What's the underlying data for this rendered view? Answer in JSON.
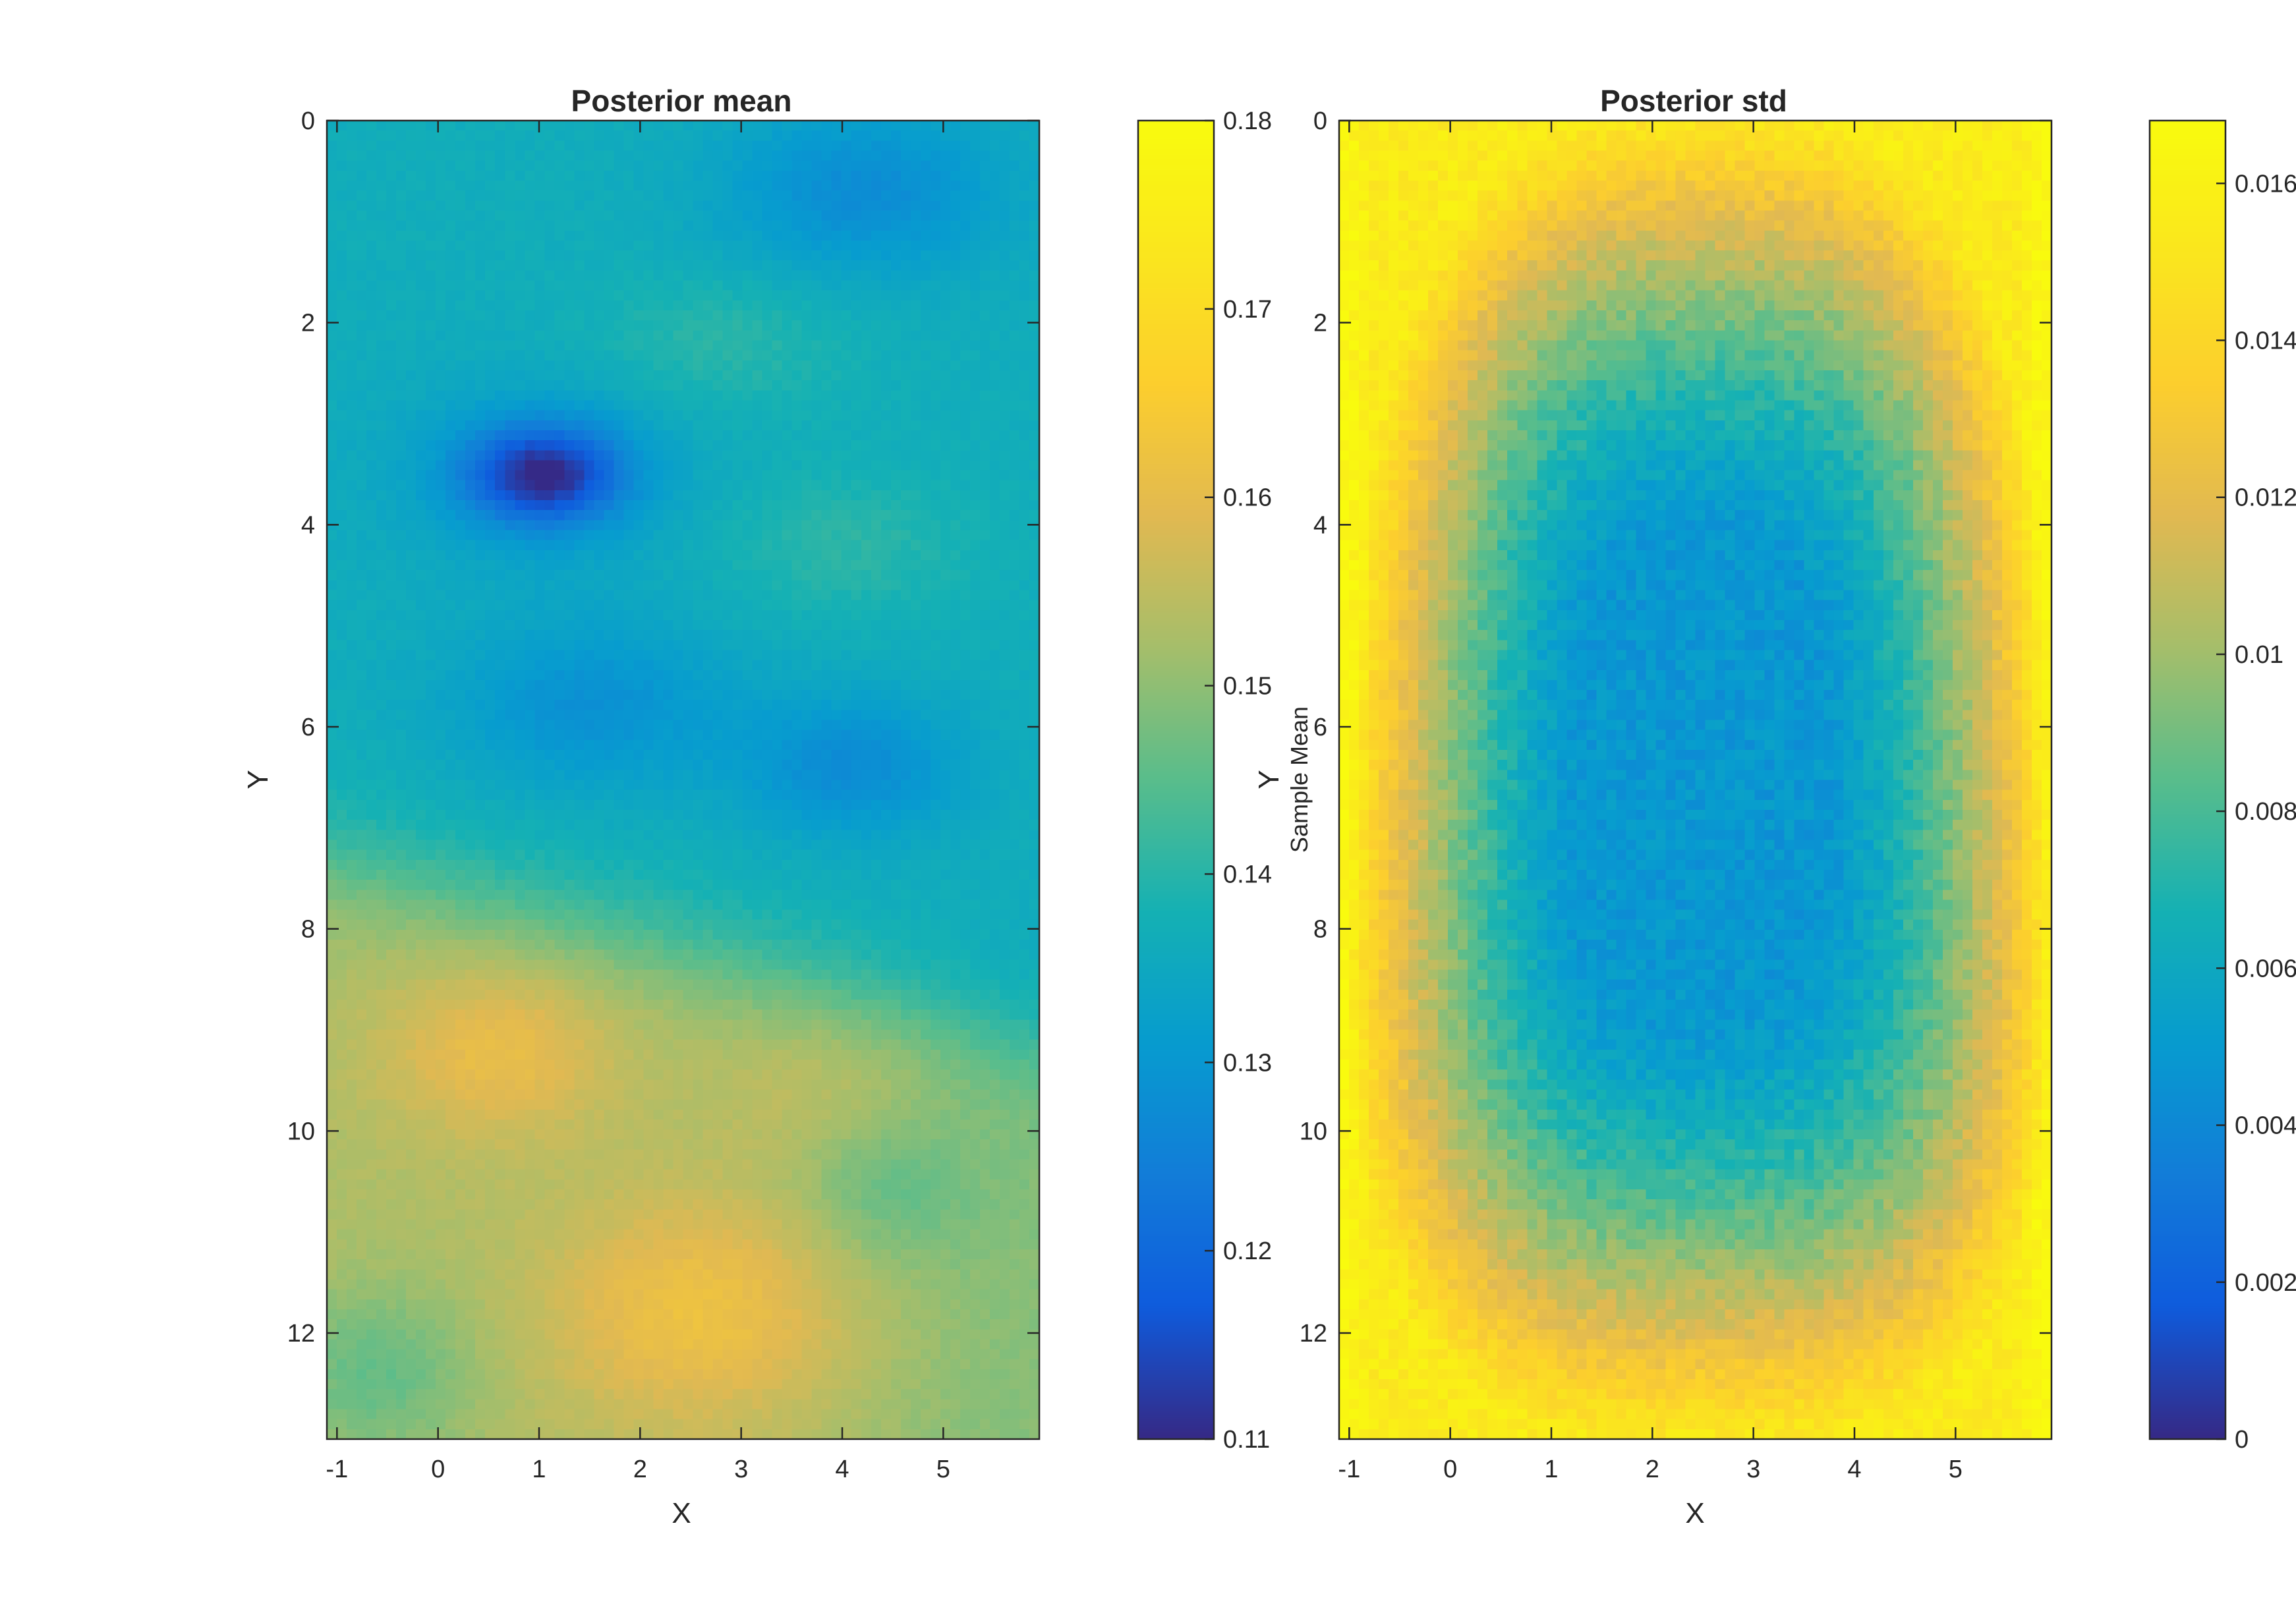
{
  "chart_data": [
    {
      "type": "heatmap",
      "title": "Posterior mean",
      "xlabel": "X",
      "ylabel": "Y",
      "xlim": [
        -1.1,
        5.95
      ],
      "ylim": [
        0,
        13.05
      ],
      "y_reversed": true,
      "xticks": [
        -1,
        0,
        1,
        2,
        3,
        4,
        5
      ],
      "xtick_labels": [
        "-1",
        "0",
        "1",
        "2",
        "3",
        "4",
        "5"
      ],
      "yticks": [
        0,
        2,
        4,
        6,
        8,
        10,
        12
      ],
      "ytick_labels": [
        "0",
        "2",
        "4",
        "6",
        "8",
        "10",
        "12"
      ],
      "grid": {
        "cols": 72,
        "rows": 132
      },
      "colormap": "parula",
      "base": 0.1365,
      "features": [
        {
          "x": 1.05,
          "y": 3.5,
          "sx": 0.55,
          "sy": 0.35,
          "a": -0.0225
        },
        {
          "x": 1.0,
          "y": 3.5,
          "sx": 1.1,
          "sy": 0.7,
          "a": -0.005
        },
        {
          "x": 1.5,
          "y": 5.8,
          "sx": 1.0,
          "sy": 0.6,
          "a": -0.008
        },
        {
          "x": 4.1,
          "y": 6.4,
          "sx": 0.8,
          "sy": 0.5,
          "a": -0.009
        },
        {
          "x": 4.2,
          "y": 0.7,
          "sx": 1.0,
          "sy": 0.6,
          "a": -0.009
        },
        {
          "x": 2.8,
          "y": 2.2,
          "sx": 0.9,
          "sy": 0.5,
          "a": 0.004
        },
        {
          "x": 4.0,
          "y": 4.2,
          "sx": 0.9,
          "sy": 0.5,
          "a": 0.004
        },
        {
          "x": 0.6,
          "y": 9.2,
          "sx": 0.8,
          "sy": 0.6,
          "a": 0.008
        },
        {
          "x": 2.6,
          "y": 11.8,
          "sx": 1.1,
          "sy": 0.8,
          "a": 0.009
        },
        {
          "x": 3.9,
          "y": 9.5,
          "sx": 0.8,
          "sy": 0.5,
          "a": 0.003
        },
        {
          "x": 4.4,
          "y": 10.6,
          "sx": 0.6,
          "sy": 0.5,
          "a": -0.005
        },
        {
          "x": -0.6,
          "y": 12.4,
          "sx": 0.7,
          "sy": 0.6,
          "a": -0.007
        }
      ],
      "lower_plateau": {
        "boundary_y": 8.0,
        "amplitude": 0.0165
      },
      "noise": 0.0009,
      "colorbar": {
        "min": 0.11,
        "max": 0.18,
        "ticks": [
          "0.11",
          "0.12",
          "0.13",
          "0.14",
          "0.15",
          "0.16",
          "0.17",
          "0.18"
        ],
        "label": "Sample Mean"
      }
    },
    {
      "type": "heatmap",
      "title": "Posterior std",
      "xlabel": "X",
      "ylabel": "Y",
      "xlim": [
        -1.1,
        5.95
      ],
      "ylim": [
        0,
        13.05
      ],
      "y_reversed": true,
      "xticks": [
        -1,
        0,
        1,
        2,
        3,
        4,
        5
      ],
      "xtick_labels": [
        "-1",
        "0",
        "1",
        "2",
        "3",
        "4",
        "5"
      ],
      "yticks": [
        0,
        2,
        4,
        6,
        8,
        10,
        12
      ],
      "ytick_labels": [
        "0",
        "2",
        "4",
        "6",
        "8",
        "10",
        "12"
      ],
      "grid": {
        "cols": 72,
        "rows": 132
      },
      "colormap": "parula",
      "center": {
        "x": 2.5,
        "y": 6.5
      },
      "center_min": 0.0048,
      "edge_max": 0.0155,
      "noise": 0.0007,
      "colorbar": {
        "min": 0,
        "max": 0.0168,
        "ticks": [
          "0",
          "0.002",
          "0.004",
          "0.006",
          "0.008",
          "0.01",
          "0.012",
          "0.014",
          "0.016"
        ],
        "tick_values": [
          0,
          0.002,
          0.004,
          0.006,
          0.008,
          0.01,
          0.012,
          0.014,
          0.016
        ]
      }
    }
  ]
}
